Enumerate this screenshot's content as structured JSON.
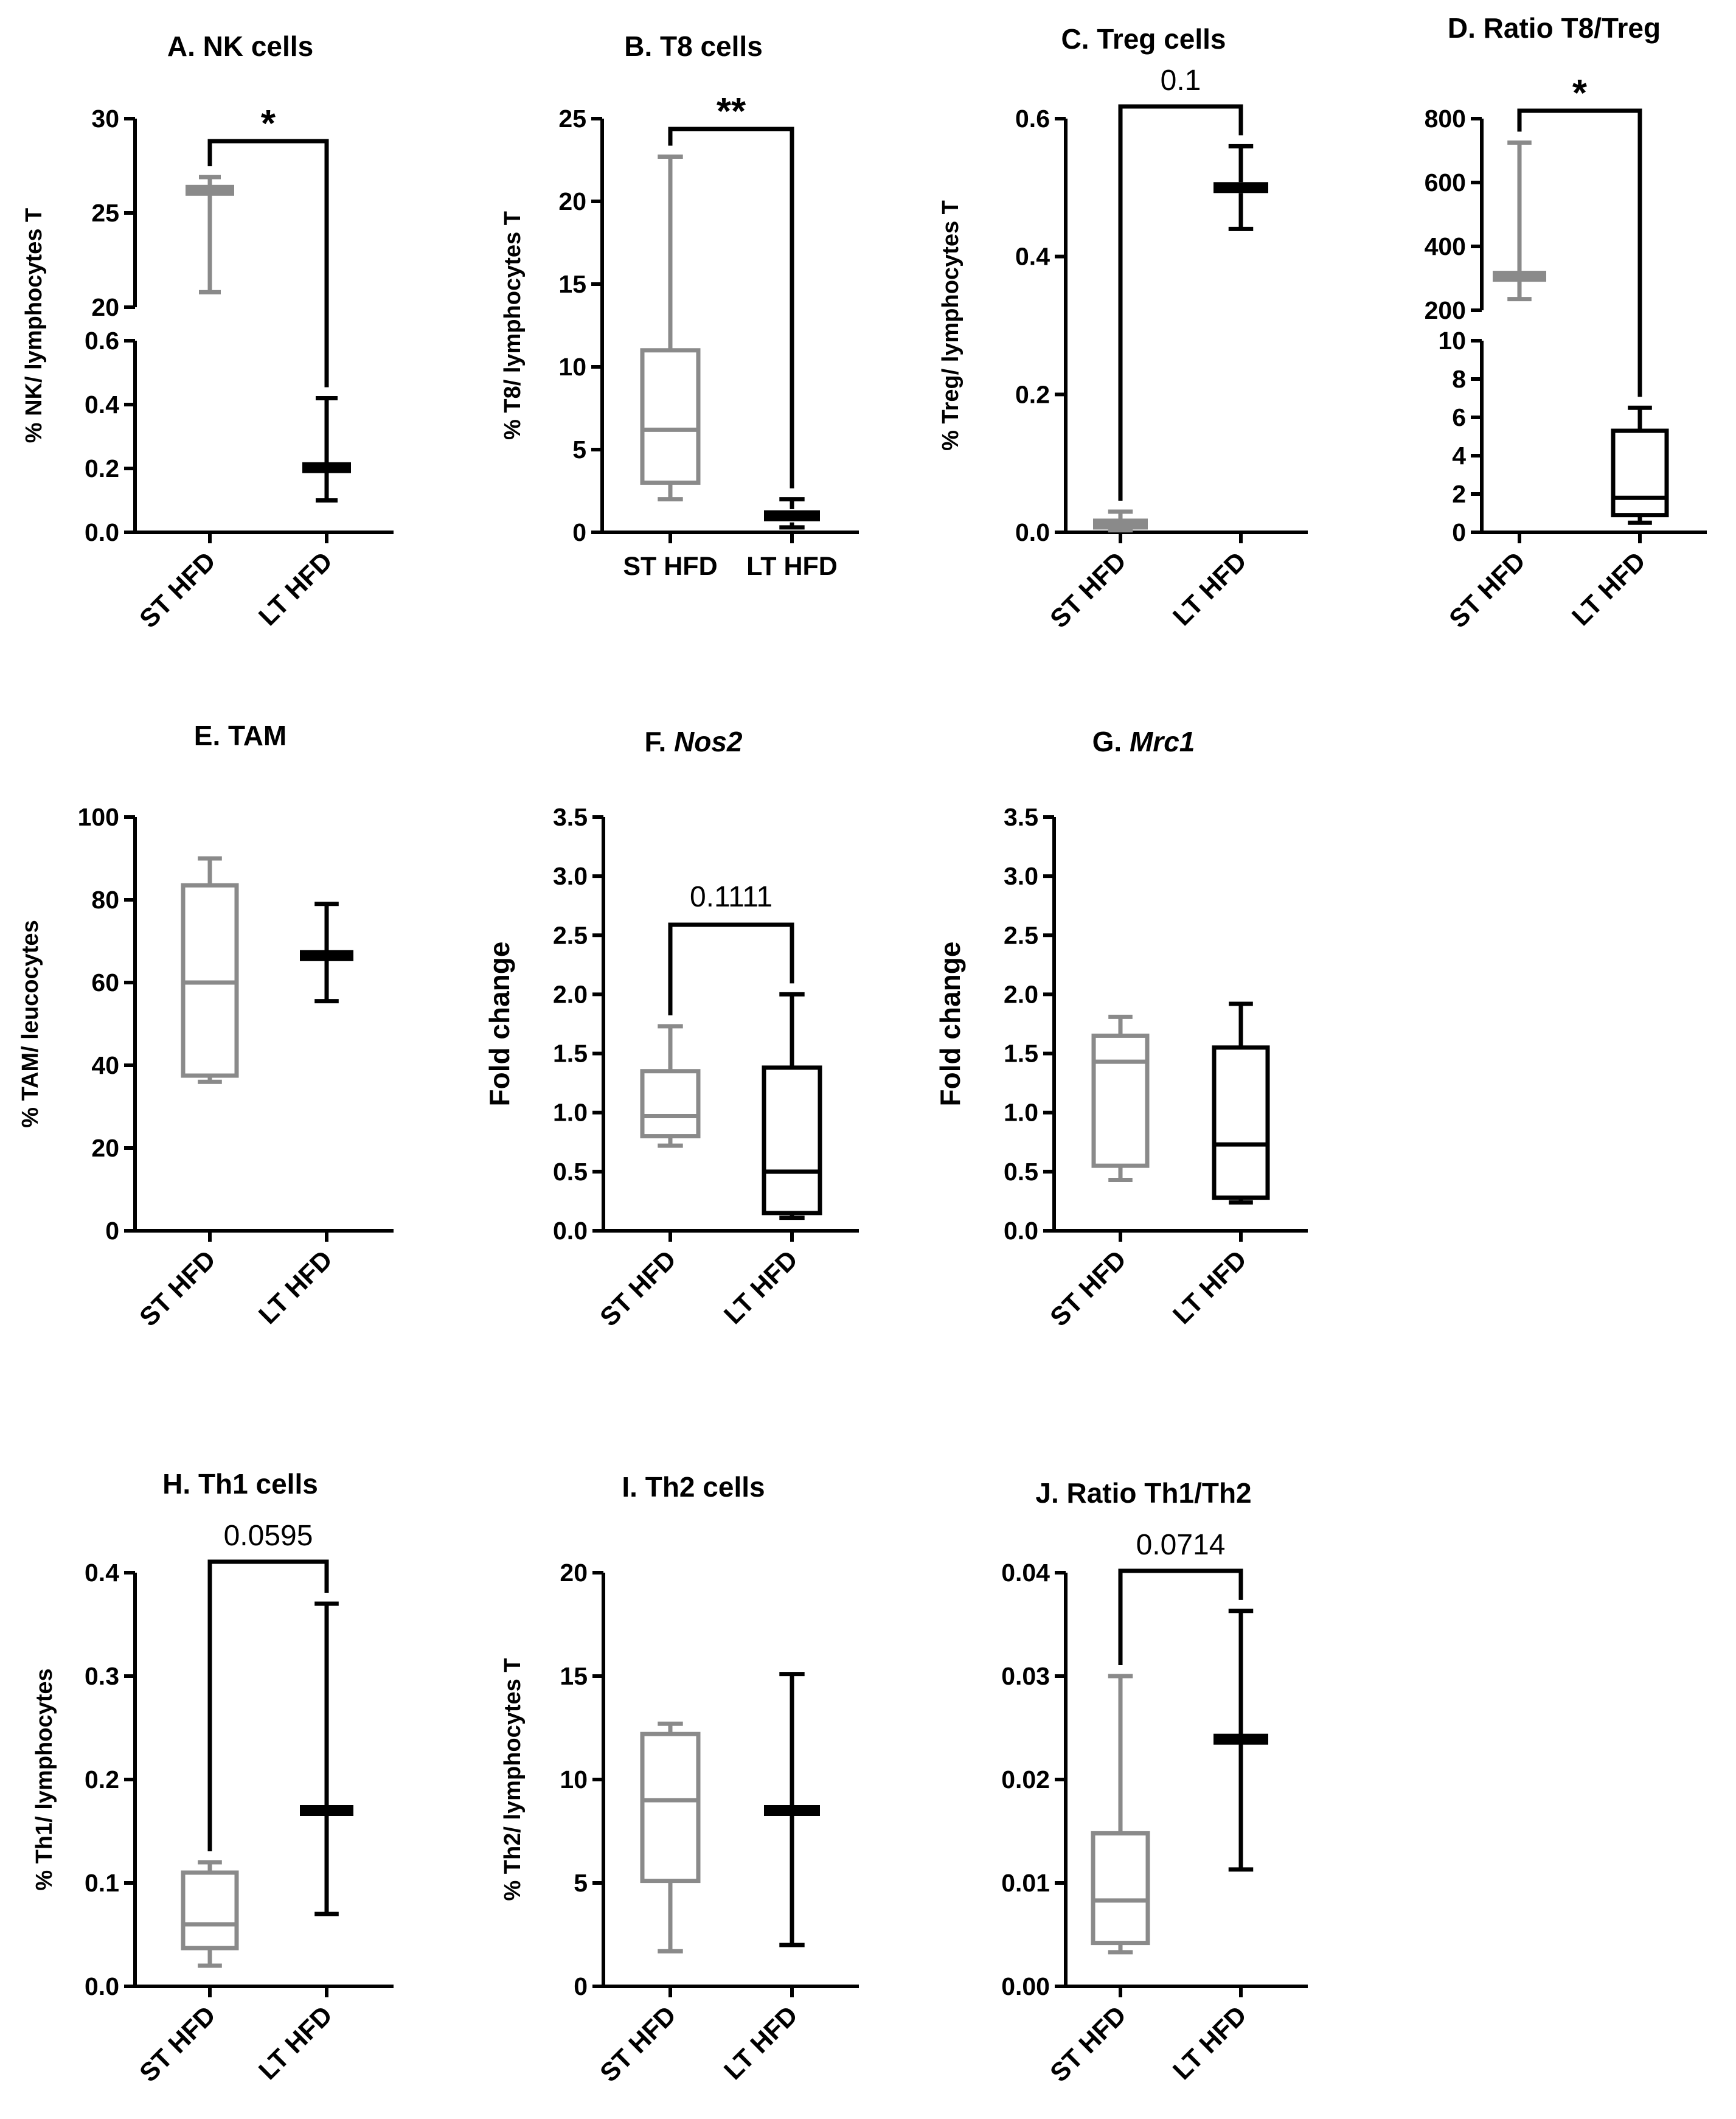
{
  "colors": {
    "st": "#8a8a8a",
    "lt": "#000000"
  },
  "chart_data": [
    {
      "type": "box",
      "title": "A. NK cells",
      "ylabel": "% NK/ lymphocytes T",
      "categories": [
        "ST HFD",
        "LT HFD"
      ],
      "axis_break": true,
      "ylim_lower": [
        0,
        0.6
      ],
      "ylim_upper": [
        20,
        30
      ],
      "yticks_lower": [
        "0.0",
        "0.2",
        "0.4",
        "0.6"
      ],
      "yticks_upper": [
        "20",
        "25",
        "30"
      ],
      "boxes": [
        {
          "name": "ST HFD",
          "min": 20.8,
          "q1": 26.0,
          "median": 26.2,
          "q3": 26.4,
          "max": 26.9
        },
        {
          "name": "LT HFD",
          "min": 0.1,
          "q1": 0.19,
          "median": 0.2,
          "q3": 0.215,
          "max": 0.42
        }
      ],
      "annotation": {
        "text": "*",
        "type": "stars"
      }
    },
    {
      "type": "box",
      "title": "B. T8 cells",
      "ylabel": "% T8/ lymphocytes T",
      "categories": [
        "ST HFD",
        "LT HFD"
      ],
      "ylim": [
        0,
        25
      ],
      "yticks": [
        "0",
        "5",
        "10",
        "15",
        "20",
        "25"
      ],
      "boxes": [
        {
          "name": "ST HFD",
          "min": 2.0,
          "q1": 3.0,
          "median": 6.2,
          "q3": 11.0,
          "max": 22.7
        },
        {
          "name": "LT HFD",
          "min": 0.3,
          "q1": 0.6,
          "median": 1.0,
          "q3": 1.4,
          "max": 2.0
        }
      ],
      "annotation": {
        "text": "**",
        "type": "stars"
      }
    },
    {
      "type": "box",
      "title": "C. Treg cells",
      "ylabel": "% Treg/ lymphocytes T",
      "categories": [
        "ST HFD",
        "LT HFD"
      ],
      "ylim": [
        0,
        0.6
      ],
      "yticks": [
        "0.0",
        "0.2",
        "0.4",
        "0.6"
      ],
      "boxes": [
        {
          "name": "ST HFD",
          "min": 0.003,
          "q1": 0.008,
          "median": 0.012,
          "q3": 0.016,
          "max": 0.03
        },
        {
          "name": "LT HFD",
          "min": 0.44,
          "q1": 0.492,
          "median": 0.5,
          "q3": 0.508,
          "max": 0.56
        }
      ],
      "annotation": {
        "text": "0.1",
        "type": "p"
      }
    },
    {
      "type": "box",
      "title": "D. Ratio T8/Treg",
      "categories": [
        "ST HFD",
        "LT HFD"
      ],
      "axis_break": true,
      "ylim_lower": [
        0,
        10
      ],
      "ylim_upper": [
        200,
        800
      ],
      "yticks_lower": [
        "0",
        "2",
        "4",
        "6",
        "8",
        "10"
      ],
      "yticks_upper": [
        "200",
        "400",
        "600",
        "800"
      ],
      "boxes": [
        {
          "name": "ST HFD",
          "min": 235,
          "q1": 295,
          "median": 305,
          "q3": 318,
          "max": 725
        },
        {
          "name": "LT HFD",
          "min": 0.5,
          "q1": 0.9,
          "median": 1.8,
          "q3": 5.3,
          "max": 6.5
        }
      ],
      "annotation": {
        "text": "*",
        "type": "stars"
      }
    },
    {
      "type": "box",
      "title": "E. TAM",
      "ylabel": "% TAM/ leucocytes",
      "categories": [
        "ST HFD",
        "LT HFD"
      ],
      "ylim": [
        0,
        100
      ],
      "yticks": [
        "0",
        "20",
        "40",
        "60",
        "80",
        "100"
      ],
      "boxes": [
        {
          "name": "ST HFD",
          "min": 36,
          "q1": 37.5,
          "median": 60,
          "q3": 83.5,
          "max": 90
        },
        {
          "name": "LT HFD",
          "min": 55.5,
          "q1": 65.5,
          "median": 66.5,
          "q3": 67.5,
          "max": 79
        }
      ]
    },
    {
      "type": "box",
      "title": "F. Nos2",
      "title_prefix": "F. ",
      "title_italic": "Nos2",
      "ylabel": "Fold change",
      "categories": [
        "ST HFD",
        "LT HFD"
      ],
      "ylim": [
        0,
        3.5
      ],
      "yticks": [
        "0.0",
        "0.5",
        "1.0",
        "1.5",
        "2.0",
        "2.5",
        "3.0",
        "3.5"
      ],
      "boxes": [
        {
          "name": "ST HFD",
          "min": 0.72,
          "q1": 0.8,
          "median": 0.97,
          "q3": 1.35,
          "max": 1.73
        },
        {
          "name": "LT HFD",
          "min": 0.11,
          "q1": 0.15,
          "median": 0.5,
          "q3": 1.38,
          "max": 2.0
        }
      ],
      "annotation": {
        "text": "0.1111",
        "type": "p"
      }
    },
    {
      "type": "box",
      "title": "G. Mrc1",
      "title_prefix": "G. ",
      "title_italic": "Mrc1",
      "ylabel": "Fold change",
      "categories": [
        "ST HFD",
        "LT HFD"
      ],
      "ylim": [
        0,
        3.5
      ],
      "yticks": [
        "0.0",
        "0.5",
        "1.0",
        "1.5",
        "2.0",
        "2.5",
        "3.0",
        "3.5"
      ],
      "boxes": [
        {
          "name": "ST HFD",
          "min": 0.43,
          "q1": 0.55,
          "median": 1.43,
          "q3": 1.65,
          "max": 1.81
        },
        {
          "name": "LT HFD",
          "min": 0.24,
          "q1": 0.28,
          "median": 0.73,
          "q3": 1.55,
          "max": 1.92
        }
      ]
    },
    {
      "type": "box",
      "title": "H. Th1 cells",
      "ylabel": "% Th1/ lymphocytes",
      "categories": [
        "ST HFD",
        "LT HFD"
      ],
      "ylim": [
        0,
        0.4
      ],
      "yticks": [
        "0.0",
        "0.1",
        "0.2",
        "0.3",
        "0.4"
      ],
      "boxes": [
        {
          "name": "ST HFD",
          "min": 0.02,
          "q1": 0.037,
          "median": 0.06,
          "q3": 0.11,
          "max": 0.12
        },
        {
          "name": "LT HFD",
          "min": 0.07,
          "q1": 0.167,
          "median": 0.17,
          "q3": 0.173,
          "max": 0.37
        }
      ],
      "annotation": {
        "text": "0.0595",
        "type": "p"
      }
    },
    {
      "type": "box",
      "title": "I. Th2 cells",
      "ylabel": "% Th2/ lymphocytes T",
      "categories": [
        "ST HFD",
        "LT HFD"
      ],
      "ylim": [
        0,
        20
      ],
      "yticks": [
        "0",
        "5",
        "10",
        "15",
        "20"
      ],
      "boxes": [
        {
          "name": "ST HFD",
          "min": 1.7,
          "q1": 5.1,
          "median": 9.0,
          "q3": 12.2,
          "max": 12.7
        },
        {
          "name": "LT HFD",
          "min": 2.0,
          "q1": 8.35,
          "median": 8.5,
          "q3": 8.65,
          "max": 15.1
        }
      ]
    },
    {
      "type": "box",
      "title": "J. Ratio Th1/Th2",
      "categories": [
        "ST HFD",
        "LT HFD"
      ],
      "ylim": [
        0,
        0.04
      ],
      "yticks": [
        "0.00",
        "0.01",
        "0.02",
        "0.03",
        "0.04"
      ],
      "boxes": [
        {
          "name": "ST HFD",
          "min": 0.0033,
          "q1": 0.0042,
          "median": 0.0083,
          "q3": 0.0148,
          "max": 0.03
        },
        {
          "name": "LT HFD",
          "min": 0.0113,
          "q1": 0.0236,
          "median": 0.0239,
          "q3": 0.0242,
          "max": 0.0363
        }
      ],
      "annotation": {
        "text": "0.0714",
        "type": "p"
      }
    }
  ]
}
